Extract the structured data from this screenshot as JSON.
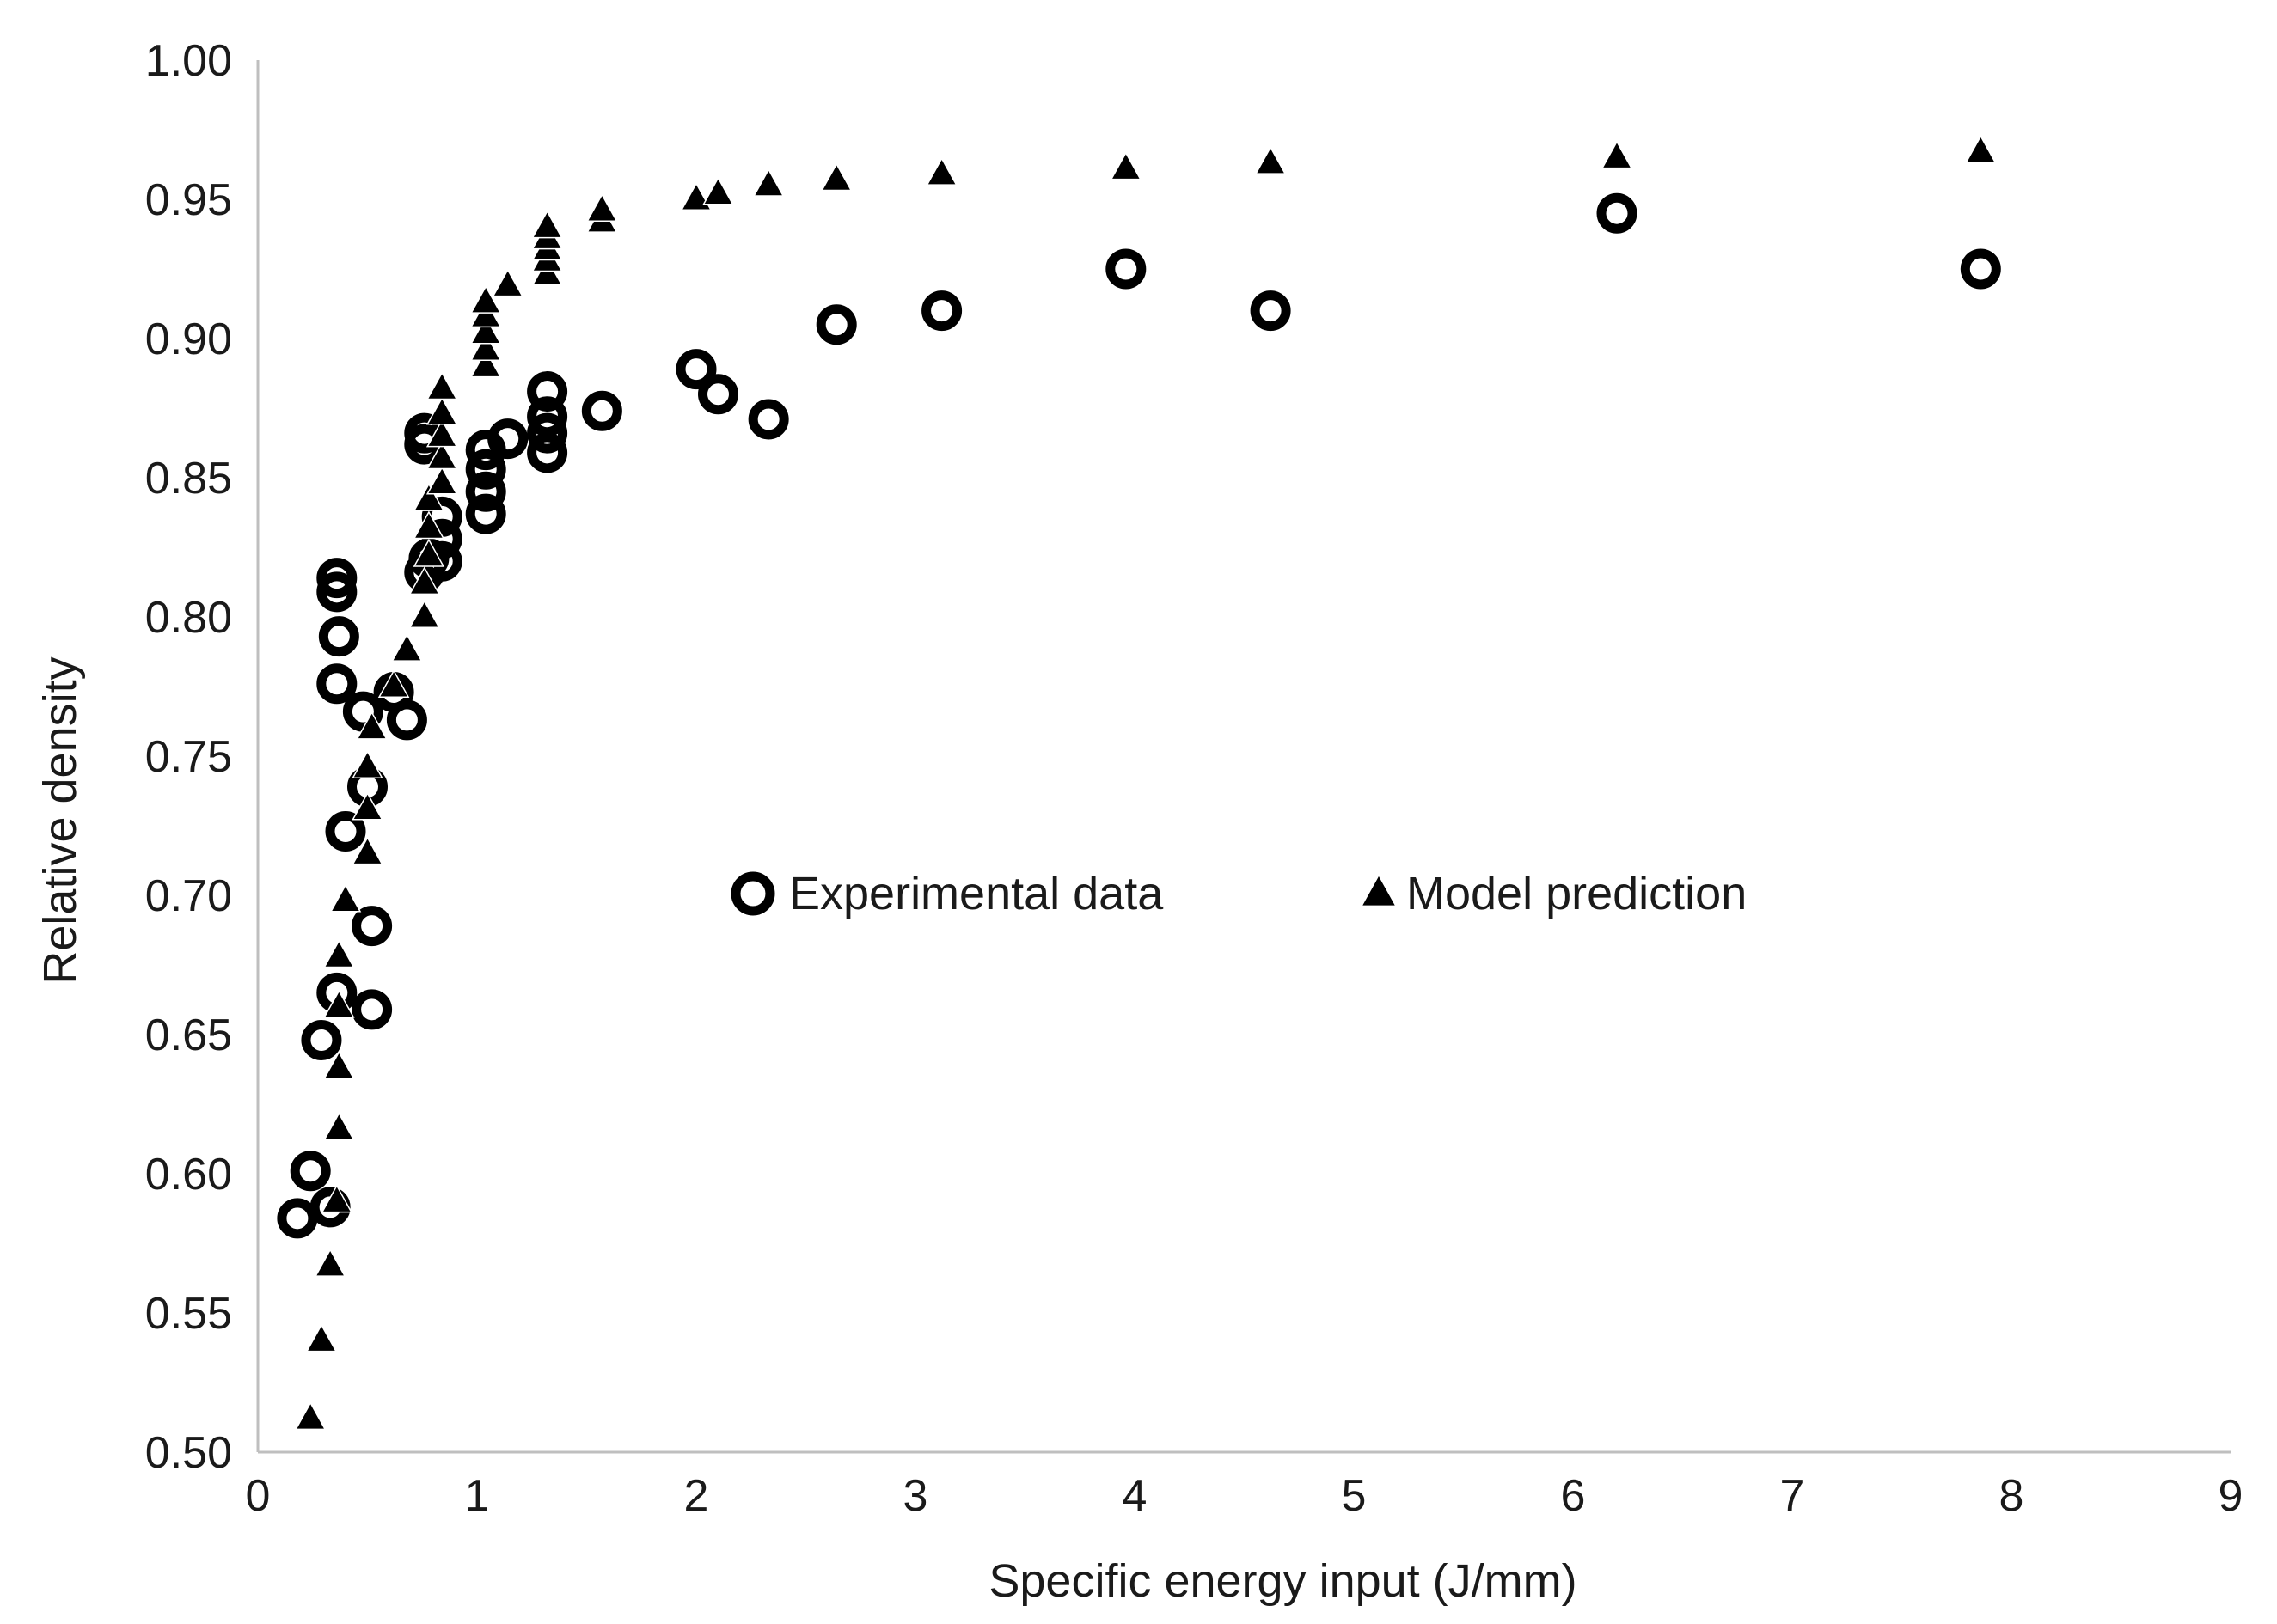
{
  "chart_data": {
    "type": "scatter",
    "title": "",
    "xlabel": "Specific energy input (J/mm)",
    "ylabel": "Relative  density",
    "xlim": [
      0,
      9
    ],
    "ylim": [
      0.5,
      1.0
    ],
    "x_ticks": [
      "0",
      "1",
      "2",
      "3",
      "4",
      "5",
      "6",
      "7",
      "8",
      "9"
    ],
    "y_ticks": [
      "0.50",
      "0.55",
      "0.60",
      "0.65",
      "0.70",
      "0.75",
      "0.80",
      "0.85",
      "0.90",
      "0.95",
      "1.00"
    ],
    "grid": false,
    "legend_position": "center",
    "series": [
      {
        "name": "Experimental  data",
        "marker": "ring",
        "color": "#000000",
        "points": [
          [
            0.18,
            0.584
          ],
          [
            0.24,
            0.601
          ],
          [
            0.33,
            0.588
          ],
          [
            0.29,
            0.648
          ],
          [
            0.36,
            0.665
          ],
          [
            0.52,
            0.659
          ],
          [
            0.52,
            0.689
          ],
          [
            0.4,
            0.723
          ],
          [
            0.5,
            0.739
          ],
          [
            0.36,
            0.776
          ],
          [
            0.37,
            0.793
          ],
          [
            0.36,
            0.809
          ],
          [
            0.36,
            0.814
          ],
          [
            0.48,
            0.766
          ],
          [
            0.62,
            0.773
          ],
          [
            0.68,
            0.763
          ],
          [
            0.76,
            0.816
          ],
          [
            0.78,
            0.821
          ],
          [
            0.84,
            0.82
          ],
          [
            0.84,
            0.828
          ],
          [
            0.84,
            0.836
          ],
          [
            0.76,
            0.862
          ],
          [
            0.76,
            0.866
          ],
          [
            1.04,
            0.837
          ],
          [
            1.04,
            0.845
          ],
          [
            1.04,
            0.853
          ],
          [
            1.04,
            0.86
          ],
          [
            1.14,
            0.864
          ],
          [
            1.32,
            0.859
          ],
          [
            1.32,
            0.866
          ],
          [
            1.32,
            0.872
          ],
          [
            1.32,
            0.881
          ],
          [
            1.57,
            0.874
          ],
          [
            2.0,
            0.889
          ],
          [
            2.1,
            0.88
          ],
          [
            2.33,
            0.871
          ],
          [
            2.64,
            0.905
          ],
          [
            3.12,
            0.91
          ],
          [
            3.96,
            0.925
          ],
          [
            4.62,
            0.91
          ],
          [
            6.2,
            0.945
          ],
          [
            7.86,
            0.925
          ]
        ]
      },
      {
        "name": "Model prediction",
        "marker": "triangle",
        "color": "#000000",
        "points": [
          [
            0.24,
            0.512
          ],
          [
            0.29,
            0.54
          ],
          [
            0.33,
            0.567
          ],
          [
            0.36,
            0.59
          ],
          [
            0.37,
            0.616
          ],
          [
            0.37,
            0.638
          ],
          [
            0.37,
            0.66
          ],
          [
            0.37,
            0.678
          ],
          [
            0.4,
            0.698
          ],
          [
            0.5,
            0.715
          ],
          [
            0.5,
            0.731
          ],
          [
            0.5,
            0.746
          ],
          [
            0.52,
            0.76
          ],
          [
            0.62,
            0.775
          ],
          [
            0.68,
            0.788
          ],
          [
            0.76,
            0.8
          ],
          [
            0.76,
            0.812
          ],
          [
            0.78,
            0.822
          ],
          [
            0.78,
            0.832
          ],
          [
            0.78,
            0.842
          ],
          [
            0.84,
            0.848
          ],
          [
            0.84,
            0.857
          ],
          [
            0.84,
            0.865
          ],
          [
            0.84,
            0.873
          ],
          [
            0.84,
            0.882
          ],
          [
            1.04,
            0.89
          ],
          [
            1.04,
            0.896
          ],
          [
            1.04,
            0.902
          ],
          [
            1.04,
            0.908
          ],
          [
            1.04,
            0.913
          ],
          [
            1.14,
            0.919
          ],
          [
            1.32,
            0.923
          ],
          [
            1.32,
            0.928
          ],
          [
            1.32,
            0.932
          ],
          [
            1.32,
            0.936
          ],
          [
            1.32,
            0.94
          ],
          [
            1.57,
            0.942
          ],
          [
            1.57,
            0.946
          ],
          [
            2.0,
            0.95
          ],
          [
            2.1,
            0.952
          ],
          [
            2.33,
            0.955
          ],
          [
            2.64,
            0.957
          ],
          [
            3.12,
            0.959
          ],
          [
            3.96,
            0.961
          ],
          [
            4.62,
            0.963
          ],
          [
            6.2,
            0.965
          ],
          [
            7.86,
            0.967
          ]
        ]
      }
    ]
  }
}
